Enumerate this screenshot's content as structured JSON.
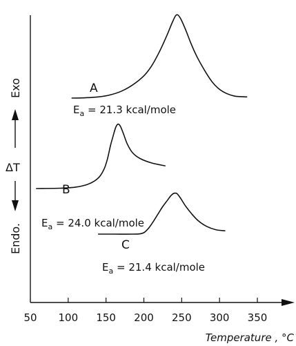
{
  "chart_data": {
    "type": "line",
    "title": "",
    "xlabel": "Temperature , °C",
    "ylabel": "ΔT",
    "ylabel_top": "Exo",
    "ylabel_bottom": "Endo.",
    "xlim": [
      50,
      380
    ],
    "xticks": [
      50,
      100,
      150,
      200,
      250,
      300,
      350
    ],
    "grid": false,
    "series": [
      {
        "name": "A",
        "annotation": {
          "pre": "E",
          "sub": "a",
          "post": " = 21.3 kcal/mole"
        },
        "x": [
          105,
          120,
          140,
          155,
          170,
          185,
          200,
          210,
          220,
          230,
          238,
          243,
          248,
          255,
          262,
          270,
          280,
          290,
          300,
          310,
          320,
          328,
          336
        ],
        "y": [
          0,
          0.2,
          1.2,
          3.2,
          7,
          13.5,
          23,
          33,
          47,
          64,
          79,
          86,
          83,
          71,
          57,
          43,
          29,
          17,
          9,
          4.5,
          2,
          1.5,
          1.2
        ]
      },
      {
        "name": "B",
        "annotation": {
          "pre": "E",
          "sub": "a",
          "post": " = 24.0 kcal/mole"
        },
        "x": [
          58,
          90,
          110,
          125,
          135,
          142,
          148,
          152,
          156,
          160,
          163,
          166,
          169,
          173,
          178,
          185,
          195,
          210,
          228
        ],
        "y": [
          0,
          0.5,
          2,
          5.5,
          10.5,
          17,
          28,
          41,
          59,
          74,
          84,
          88,
          85,
          75,
          61,
          49,
          41,
          35,
          31
        ]
      },
      {
        "name": "C",
        "annotation": {
          "pre": "E",
          "sub": "a",
          "post": " = 21.4 kcal/mole"
        },
        "x": [
          140,
          160,
          185,
          195,
          201,
          207,
          213,
          219,
          225,
          231,
          236,
          240,
          244,
          249,
          255,
          263,
          272,
          283,
          295,
          307
        ],
        "y": [
          0,
          0,
          0,
          0.5,
          3.5,
          12,
          24,
          37,
          50,
          61,
          70,
          74,
          73,
          64,
          51,
          37,
          24,
          14,
          8,
          6
        ]
      }
    ]
  }
}
